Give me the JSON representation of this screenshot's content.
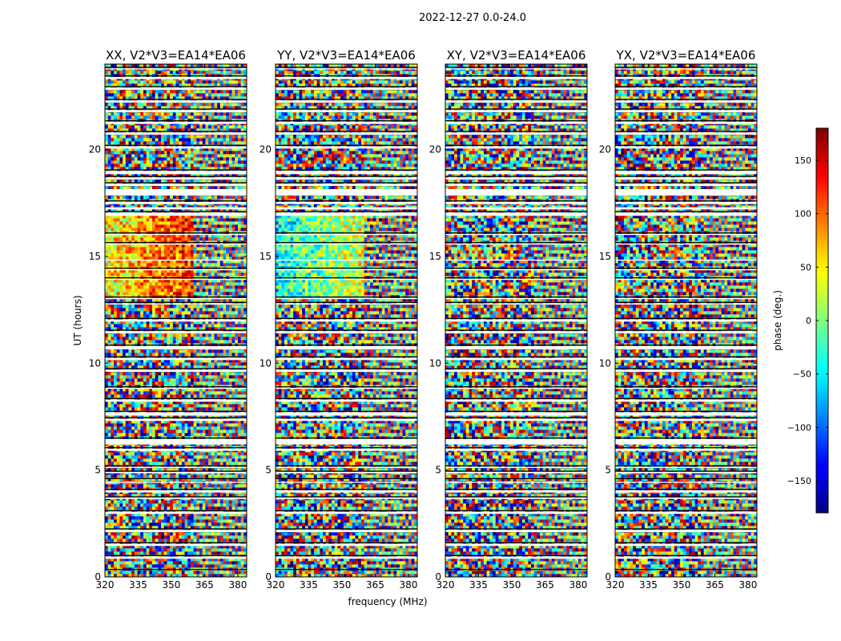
{
  "chart_data": {
    "type": "heatmap",
    "suptitle": "2022-12-27 0.0-24.0",
    "xlabel": "frequency (MHz)",
    "ylabel": "UT (hours)",
    "xticks": [
      "320",
      "335",
      "350",
      "365",
      "380"
    ],
    "xlim": [
      320,
      384
    ],
    "yticks": [
      "0",
      "5",
      "10",
      "15",
      "20"
    ],
    "ylim": [
      0,
      24
    ],
    "panels": [
      {
        "title": "XX, V2*V3=EA14*EA06"
      },
      {
        "title": "YY, V2*V3=EA14*EA06"
      },
      {
        "title": "XY, V2*V3=EA14*EA06"
      },
      {
        "title": "YX, V2*V3=EA14*EA06"
      }
    ],
    "colorbar": {
      "label": "phase (deg.)",
      "range": [
        -180,
        180
      ],
      "ticks": [
        "150",
        "100",
        "50",
        "0",
        "−50",
        "−100",
        "−150"
      ],
      "tick_values": [
        150,
        100,
        50,
        0,
        -50,
        -100,
        -150
      ],
      "colormap": "jet"
    },
    "gaps_hours": [
      [
        0.85,
        0.95
      ],
      [
        1.45,
        1.55
      ],
      [
        2.1,
        2.2
      ],
      [
        2.95,
        3.05
      ],
      [
        3.65,
        3.72
      ],
      [
        3.95,
        4.05
      ],
      [
        4.4,
        4.45
      ],
      [
        4.85,
        4.92
      ],
      [
        5.1,
        5.15
      ],
      [
        5.9,
        6.0
      ],
      [
        6.2,
        6.45
      ],
      [
        7.3,
        7.4
      ],
      [
        7.55,
        7.7
      ],
      [
        8.2,
        8.3
      ],
      [
        8.8,
        8.85
      ],
      [
        9.6,
        9.7
      ],
      [
        10.15,
        10.25
      ],
      [
        10.65,
        10.8
      ],
      [
        11.4,
        11.5
      ],
      [
        11.95,
        12.05
      ],
      [
        12.75,
        12.8
      ],
      [
        13.0,
        13.05
      ],
      [
        13.9,
        13.95
      ],
      [
        14.35,
        14.4
      ],
      [
        14.8,
        14.85
      ],
      [
        15.55,
        15.6
      ],
      [
        16.0,
        16.05
      ],
      [
        16.9,
        17.05
      ],
      [
        17.2,
        17.3
      ],
      [
        17.45,
        17.55
      ],
      [
        17.85,
        18.15
      ],
      [
        18.3,
        18.4
      ],
      [
        18.6,
        18.7
      ],
      [
        18.85,
        19.0
      ],
      [
        20.05,
        20.15
      ],
      [
        20.7,
        20.8
      ],
      [
        21.2,
        21.3
      ],
      [
        21.75,
        21.85
      ],
      [
        22.2,
        22.3
      ],
      [
        22.8,
        22.9
      ],
      [
        23.3,
        23.4
      ],
      [
        23.75,
        23.8
      ]
    ],
    "black_lines_hours": [
      0.35,
      1.0,
      1.6,
      2.25,
      3.1,
      3.75,
      4.1,
      4.6,
      4.95,
      5.2,
      6.05,
      6.5,
      7.45,
      7.75,
      8.35,
      8.9,
      9.75,
      10.3,
      10.85,
      11.55,
      12.1,
      12.85,
      13.1,
      14.0,
      14.45,
      15.65,
      16.1,
      17.1,
      17.6,
      18.45,
      18.75,
      19.05,
      20.2,
      20.85,
      21.35,
      21.9,
      22.35,
      22.95,
      23.45,
      23.85
    ]
  }
}
